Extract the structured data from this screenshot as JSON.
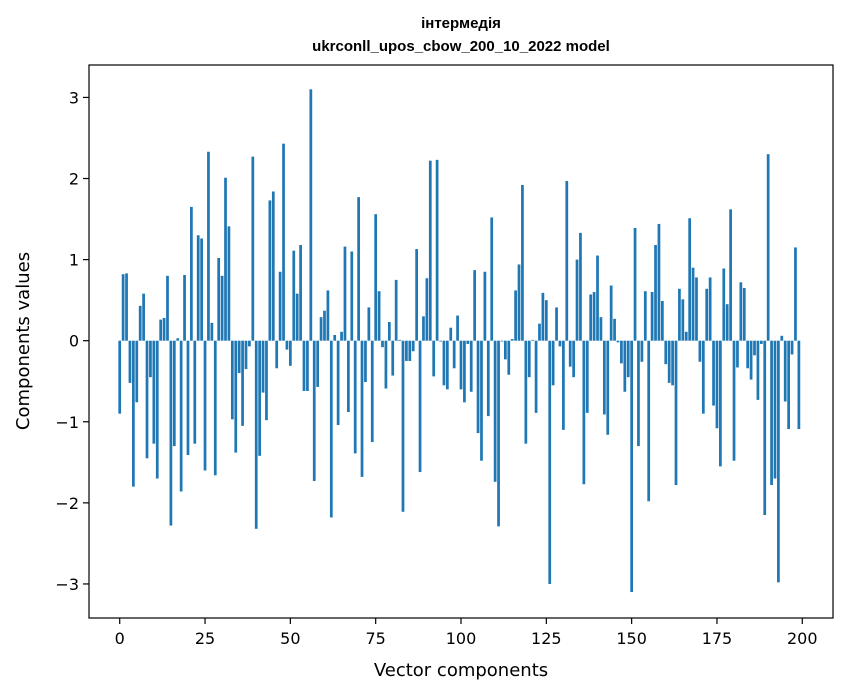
{
  "chart_data": {
    "type": "bar",
    "title": "інтермедія",
    "subtitle": "ukrconll_upos_cbow_200_10_2022 model",
    "xlabel": "Vector components",
    "ylabel": "Components values",
    "xlim": [
      -9,
      209
    ],
    "ylim": [
      -3.42,
      3.4
    ],
    "xticks": [
      0,
      25,
      50,
      75,
      100,
      125,
      150,
      175,
      200
    ],
    "xtick_labels": [
      "0",
      "25",
      "50",
      "75",
      "100",
      "125",
      "150",
      "175",
      "200"
    ],
    "yticks": [
      -3,
      -2,
      -1,
      0,
      1,
      2,
      3
    ],
    "ytick_labels": [
      "−3",
      "−2",
      "−1",
      "0",
      "1",
      "2",
      "3"
    ],
    "grid": false,
    "bar_color": "#1f77b4",
    "values": [
      -0.9,
      0.82,
      0.83,
      -0.52,
      -1.8,
      -0.76,
      0.43,
      0.58,
      -1.45,
      -0.45,
      -1.27,
      -1.7,
      0.26,
      0.28,
      0.8,
      -2.28,
      -1.3,
      0.03,
      -1.86,
      0.81,
      -1.41,
      1.65,
      -1.27,
      1.3,
      1.26,
      -1.6,
      2.33,
      0.22,
      -1.66,
      1.02,
      0.8,
      2.01,
      1.41,
      -0.97,
      -1.38,
      -0.4,
      -1.05,
      -0.35,
      -0.07,
      2.27,
      -2.32,
      -1.42,
      -0.64,
      -0.98,
      1.73,
      1.84,
      -0.34,
      0.85,
      2.43,
      -0.11,
      -0.31,
      1.11,
      0.58,
      1.18,
      -0.62,
      -0.62,
      3.1,
      -1.73,
      -0.57,
      0.29,
      0.37,
      0.62,
      -2.18,
      0.07,
      -1.04,
      0.11,
      1.16,
      -0.88,
      1.1,
      -1.39,
      1.77,
      -1.68,
      -0.51,
      0.41,
      -1.25,
      1.56,
      0.61,
      -0.08,
      -0.59,
      0.23,
      -0.43,
      0.75,
      0.01,
      -2.11,
      -0.25,
      -0.25,
      -0.13,
      1.13,
      -1.62,
      0.3,
      0.77,
      2.22,
      -0.44,
      2.23,
      -0.01,
      -0.55,
      -0.6,
      0.16,
      -0.34,
      0.31,
      -0.6,
      -0.76,
      -0.04,
      -0.63,
      0.87,
      -1.14,
      -1.48,
      0.85,
      -0.93,
      1.52,
      -1.74,
      -2.29,
      -0.01,
      -0.23,
      -0.42,
      0.02,
      0.62,
      0.94,
      1.92,
      -1.27,
      -0.45,
      0.01,
      -0.89,
      0.21,
      0.59,
      0.5,
      -3.0,
      -0.55,
      0.41,
      -0.07,
      -1.1,
      1.97,
      -0.32,
      -0.45,
      1.0,
      1.33,
      -1.77,
      -0.89,
      0.57,
      0.6,
      1.05,
      0.29,
      -0.91,
      -1.16,
      0.68,
      0.27,
      -0.02,
      -0.28,
      -0.63,
      -0.45,
      -3.1,
      1.39,
      -1.3,
      -0.26,
      0.61,
      -1.98,
      0.6,
      1.18,
      1.44,
      0.49,
      -0.29,
      -0.52,
      -0.55,
      -1.78,
      0.64,
      0.51,
      0.11,
      1.51,
      0.9,
      0.78,
      -0.26,
      -0.9,
      0.64,
      0.78,
      -0.8,
      -1.08,
      -1.55,
      0.89,
      0.45,
      1.62,
      -1.48,
      -0.33,
      0.72,
      0.65,
      -0.34,
      -0.48,
      -0.18,
      -0.73,
      -0.04,
      -2.15,
      2.3,
      -1.78,
      -1.7,
      -2.98,
      0.06,
      -0.75,
      -1.09,
      -0.17,
      1.15,
      -1.09
    ]
  }
}
